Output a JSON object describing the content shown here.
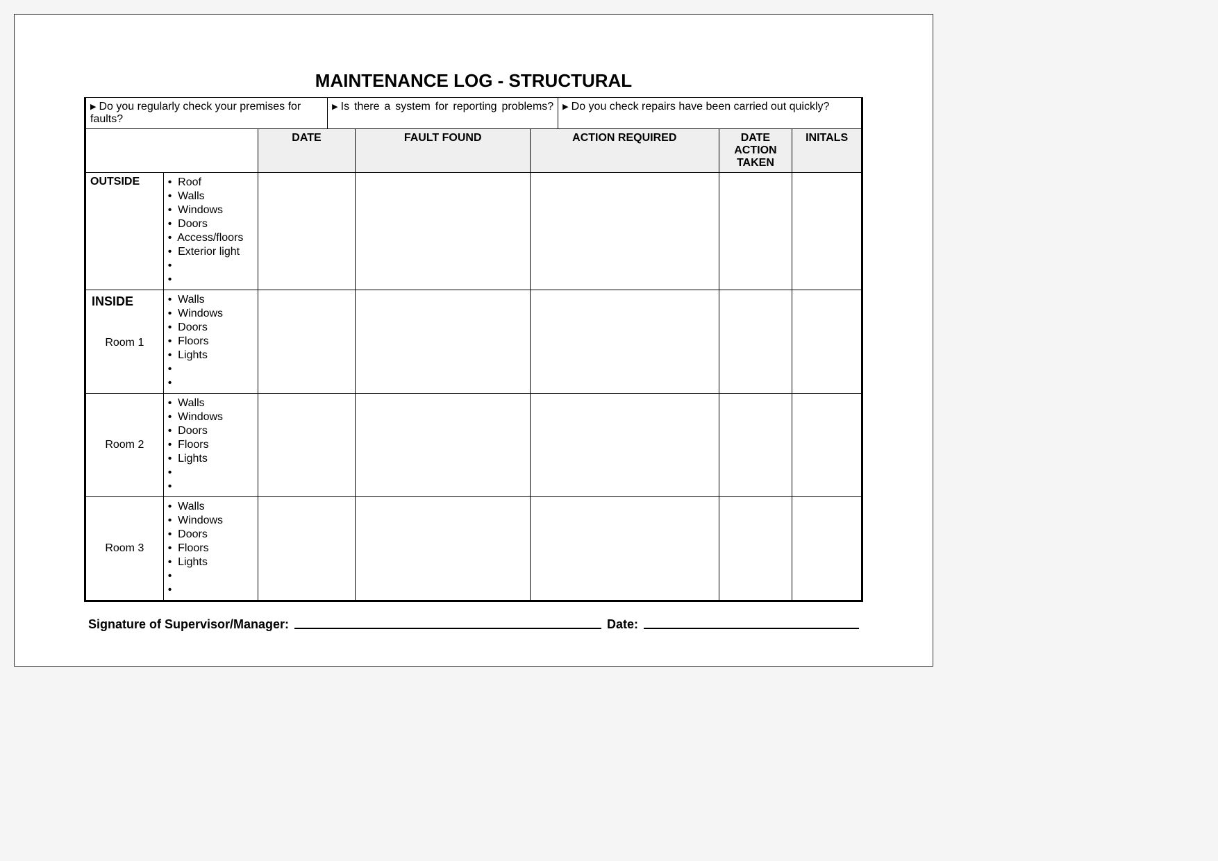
{
  "title": "MAINTENANCE LOG - STRUCTURAL",
  "questions": {
    "q1": "Do you regularly check your premises for faults?",
    "q2": "Is there a system for reporting problems?",
    "q3": "Do you check repairs have been carried out quickly?"
  },
  "headers": {
    "date": "DATE",
    "fault": "FAULT FOUND",
    "action": "ACTION REQUIRED",
    "date_action": "DATE ACTION TAKEN",
    "initials": "INITALS"
  },
  "sections": {
    "outside": {
      "label": "OUTSIDE",
      "items": [
        "Roof",
        "Walls",
        "Windows",
        "Doors",
        "Access/floors",
        "Exterior light",
        "",
        ""
      ]
    },
    "inside_label": "INSIDE",
    "room1": {
      "label": "Room 1",
      "items": [
        "Walls",
        "Windows",
        "Doors",
        "Floors",
        "Lights",
        "",
        ""
      ]
    },
    "room2": {
      "label": "Room 2",
      "items": [
        "Walls",
        "Windows",
        "Doors",
        "Floors",
        "Lights",
        "",
        ""
      ]
    },
    "room3": {
      "label": "Room 3",
      "items": [
        "Walls",
        "Windows",
        "Doors",
        "Floors",
        "Lights",
        "",
        ""
      ]
    }
  },
  "footer": {
    "signature_label": "Signature of Supervisor/Manager:",
    "date_label": "Date:"
  },
  "colors": {
    "page_bg": "#ffffff",
    "outer_bg": "#f5f5f5",
    "header_bg": "#efefef",
    "border": "#000000"
  }
}
